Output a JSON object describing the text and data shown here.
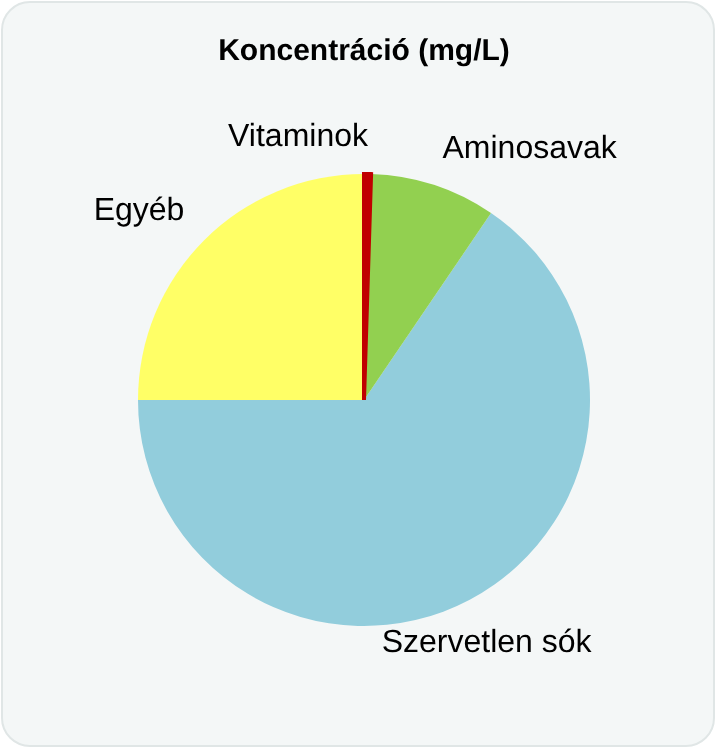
{
  "chart_data": {
    "type": "pie",
    "title": "Koncentráció (mg/L)",
    "categories": [
      "Vitaminok",
      "Aminosavak",
      "Szervetlen sók",
      "Egyéb"
    ],
    "values": [
      0.5,
      9,
      65.5,
      25
    ],
    "colors": [
      "#c00000",
      "#92d050",
      "#92cddc",
      "#ffff66"
    ]
  }
}
